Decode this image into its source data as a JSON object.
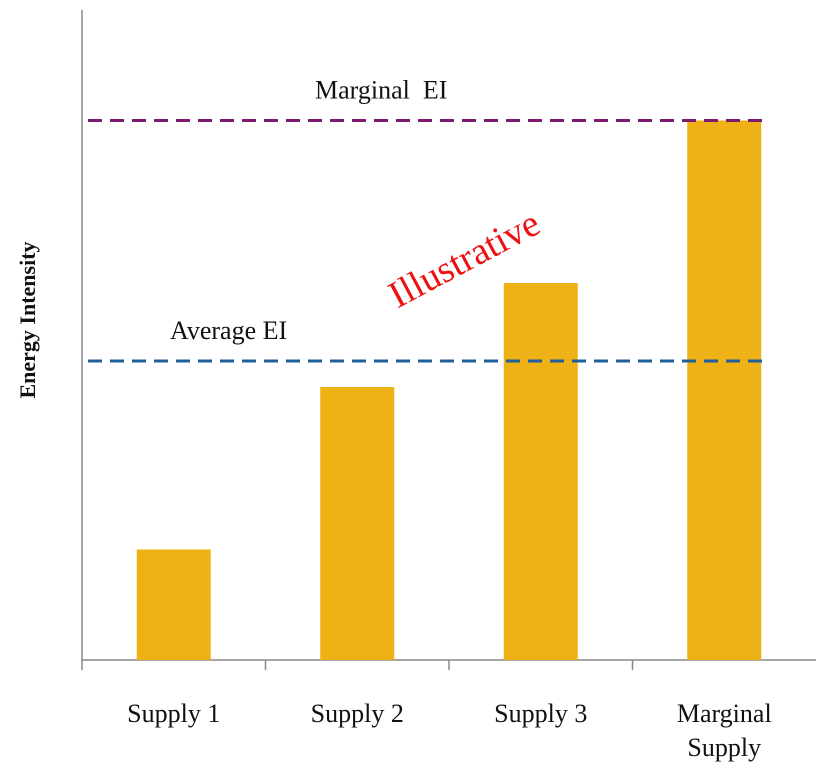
{
  "chart_data": {
    "type": "bar",
    "categories": [
      "Supply 1",
      "Supply 2",
      "Supply 3",
      "Marginal Supply"
    ],
    "values": [
      17,
      42,
      58,
      83
    ],
    "color": "#eeb116",
    "ylabel": "Energy Intensity",
    "ylim": [
      0,
      100
    ],
    "reference_lines": [
      {
        "text": "Marginal  EI",
        "value": 83,
        "color": "#7b1a6e"
      },
      {
        "text": "Average EI",
        "value": 46,
        "color": "#1f5f99"
      }
    ],
    "watermark": {
      "text": "Illustrative",
      "color": "#ee1111"
    }
  }
}
